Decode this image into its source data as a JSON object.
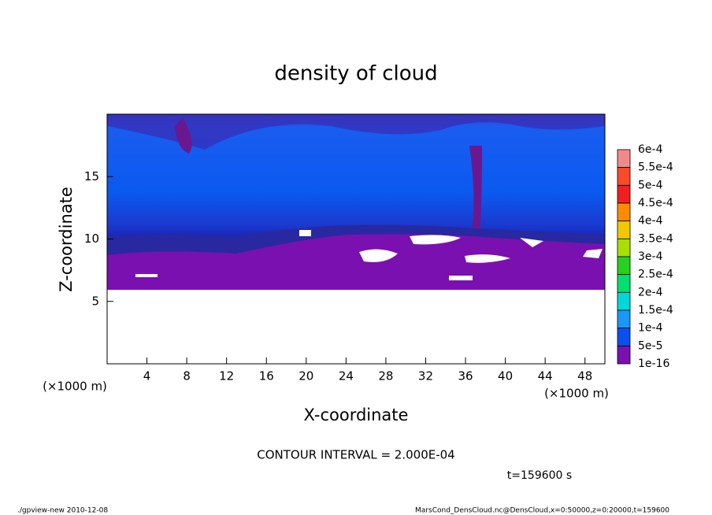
{
  "chart_data": {
    "type": "contour",
    "title": "density of cloud",
    "x_label": "X-coordinate",
    "y_label": "Z-coordinate",
    "x_unit": "(×1000 m)",
    "xlim": [
      0,
      50
    ],
    "xticks": [
      4,
      8,
      12,
      16,
      20,
      24,
      28,
      32,
      36,
      40,
      44,
      48
    ],
    "ylim": [
      0,
      20
    ],
    "yticks": [
      5,
      10,
      15
    ],
    "levels": [
      {
        "value": 0.0006,
        "label": "6e-4"
      },
      {
        "value": 0.00055,
        "label": "5.5e-4"
      },
      {
        "value": 0.0005,
        "label": "5e-4"
      },
      {
        "value": 0.00045,
        "label": "4.5e-4"
      },
      {
        "value": 0.0004,
        "label": "4e-4"
      },
      {
        "value": 0.00035,
        "label": "3.5e-4"
      },
      {
        "value": 0.0003,
        "label": "3e-4"
      },
      {
        "value": 0.00025,
        "label": "2.5e-4"
      },
      {
        "value": 0.0002,
        "label": "2e-4"
      },
      {
        "value": 0.00015,
        "label": "1.5e-4"
      },
      {
        "value": 0.0001,
        "label": "1e-4"
      },
      {
        "value": 5e-05,
        "label": "5e-5"
      },
      {
        "value": 1e-16,
        "label": "1e-16"
      }
    ],
    "colors": [
      "#f08a8a",
      "#ff4a2a",
      "#f02020",
      "#ff8c00",
      "#f0c800",
      "#a8e000",
      "#28d020",
      "#00e070",
      "#00d8d8",
      "#1898f8",
      "#0a50f0",
      "#1a1aa8"
    ],
    "lowest_color": "#7a10b0",
    "contour_interval": "CONTOUR INTERVAL = 2.000E-04",
    "time_label": "t=159600 s",
    "footer_left": "./gpview-new   2010-12-08",
    "footer_right": "MarsCond_DensCloud.nc@DensCloud,x=0:50000,z=0:20000,t=159600"
  }
}
